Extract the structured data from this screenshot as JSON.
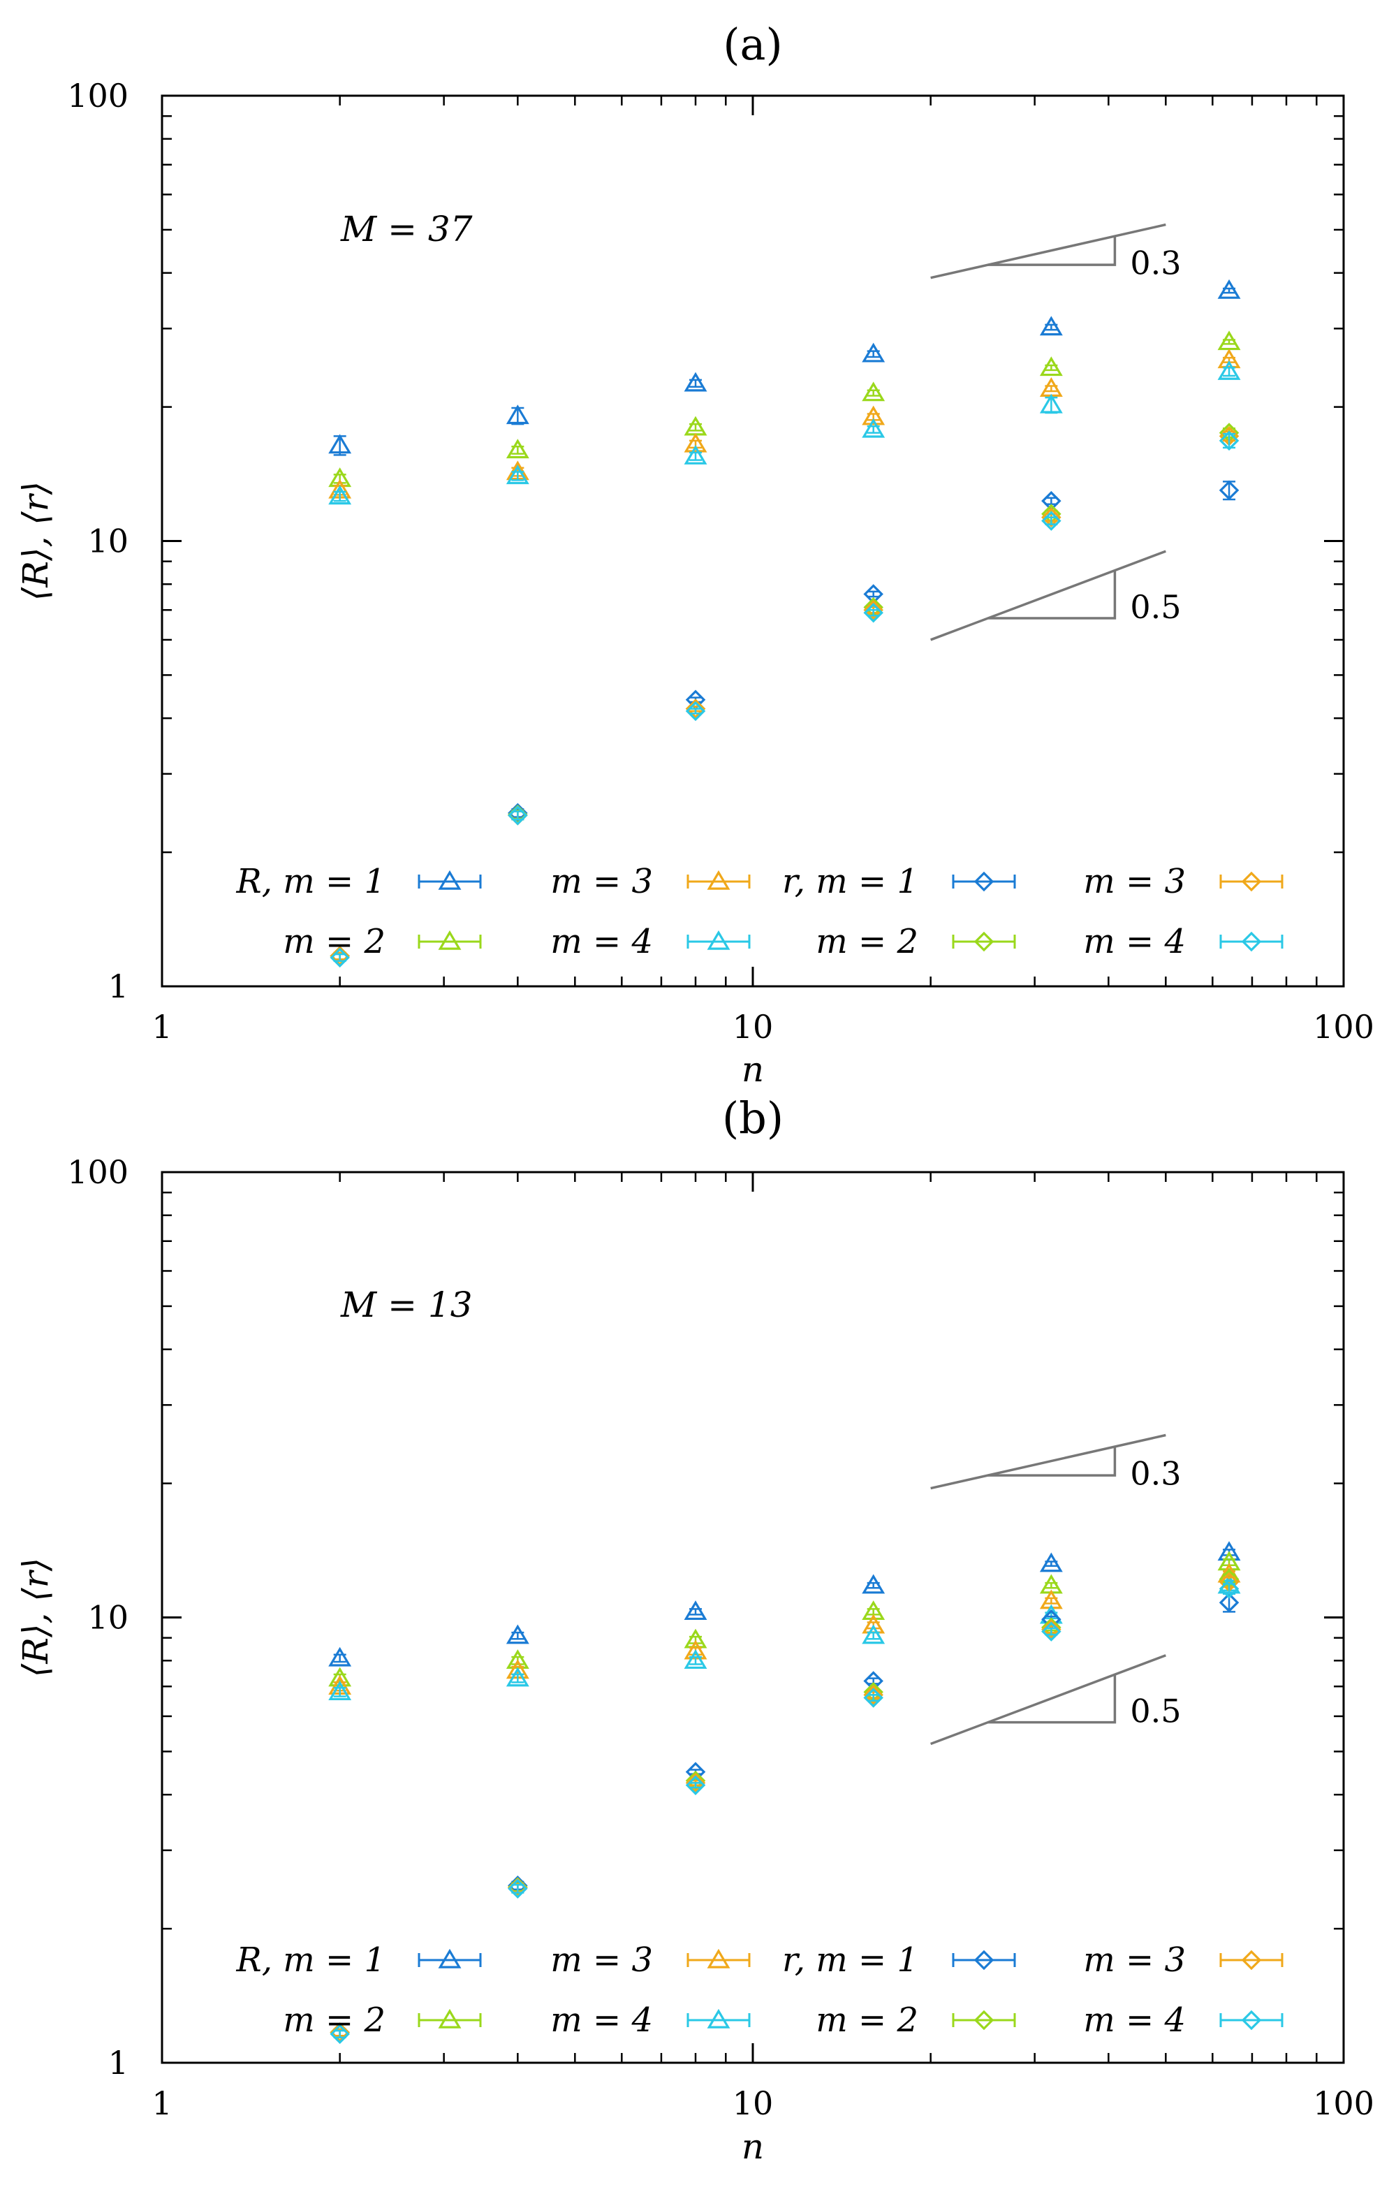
{
  "chart_data": [
    {
      "type": "scatter",
      "panel_label": "(a)",
      "title": "(a)",
      "annotation": "M = 37",
      "xlabel": "n",
      "ylabel": "⟨R⟩, ⟨r⟩",
      "xscale": "log",
      "yscale": "log",
      "xlim": [
        1,
        100
      ],
      "ylim": [
        1,
        100
      ],
      "xticks": [
        {
          "v": 1,
          "label": "1"
        },
        {
          "v": 10,
          "label": "10"
        },
        {
          "v": 100,
          "label": "100"
        }
      ],
      "yticks": [
        {
          "v": 1,
          "label": "1"
        },
        {
          "v": 10,
          "label": "10"
        },
        {
          "v": 100,
          "label": "100"
        }
      ],
      "slopes": [
        {
          "label": "0.3",
          "slope": 0.3,
          "x0": 20,
          "y0": 39,
          "x1": 50
        },
        {
          "label": "0.5",
          "slope": 0.5,
          "x0": 20,
          "y0": 6,
          "x1": 50
        }
      ],
      "x": [
        2,
        4,
        8,
        16,
        32,
        64
      ],
      "series": [
        {
          "name": "R, m = 1",
          "legend": "R, m = 1",
          "marker": "triangle",
          "color": "#1a7bd4",
          "values": [
            16.4,
            19.1,
            22.6,
            26.3,
            30.2,
            36.5
          ],
          "err": [
            0.8,
            0.8,
            0.4,
            0.4,
            0.4,
            0.4
          ]
        },
        {
          "name": "R, m = 2",
          "legend": "m = 2",
          "marker": "triangle",
          "color": "#9ad81b",
          "values": [
            13.8,
            16.0,
            18.0,
            21.5,
            24.5,
            28.0
          ],
          "err": [
            0.3,
            0.3,
            0.3,
            0.3,
            0.3,
            0.3
          ]
        },
        {
          "name": "R, m = 3",
          "legend": "m = 3",
          "marker": "triangle",
          "color": "#f0a81a",
          "values": [
            13.0,
            14.3,
            16.5,
            19.0,
            22.0,
            25.5
          ],
          "err": [
            0.3,
            0.3,
            0.3,
            0.3,
            0.3,
            0.3
          ]
        },
        {
          "name": "R, m = 4",
          "legend": "m = 4",
          "marker": "triangle",
          "color": "#2ac8e6",
          "values": [
            12.6,
            14.0,
            15.5,
            17.8,
            20.2,
            24.0
          ],
          "err": [
            0.3,
            0.3,
            0.3,
            0.3,
            0.8,
            0.5
          ]
        },
        {
          "name": "r, m = 1",
          "legend": "r, m = 1",
          "marker": "diamond",
          "color": "#1a7bd4",
          "values": [
            1.17,
            2.45,
            4.4,
            7.6,
            12.3,
            13.0
          ],
          "err": [
            0.02,
            0.05,
            0.05,
            0.1,
            0.2,
            0.6
          ]
        },
        {
          "name": "r, m = 2",
          "legend": "m = 2",
          "marker": "diamond",
          "color": "#9ad81b",
          "values": [
            1.17,
            2.43,
            4.2,
            7.1,
            11.5,
            17.5
          ],
          "err": [
            0.02,
            0.05,
            0.05,
            0.1,
            0.2,
            0.4
          ]
        },
        {
          "name": "r, m = 3",
          "legend": "m = 3",
          "marker": "diamond",
          "color": "#f0a81a",
          "values": [
            1.17,
            2.42,
            4.2,
            7.0,
            11.3,
            17.2
          ],
          "err": [
            0.02,
            0.05,
            0.05,
            0.1,
            0.2,
            0.4
          ]
        },
        {
          "name": "r, m = 4",
          "legend": "m = 4",
          "marker": "diamond",
          "color": "#2ac8e6",
          "values": [
            1.16,
            2.42,
            4.15,
            6.9,
            11.1,
            16.8
          ],
          "err": [
            0.02,
            0.05,
            0.05,
            0.1,
            0.2,
            0.6
          ]
        }
      ]
    },
    {
      "type": "scatter",
      "panel_label": "(b)",
      "title": "(b)",
      "annotation": "M = 13",
      "xlabel": "n",
      "ylabel": "⟨R⟩, ⟨r⟩",
      "xscale": "log",
      "yscale": "log",
      "xlim": [
        1,
        100
      ],
      "ylim": [
        1,
        100
      ],
      "xticks": [
        {
          "v": 1,
          "label": "1"
        },
        {
          "v": 10,
          "label": "10"
        },
        {
          "v": 100,
          "label": "100"
        }
      ],
      "yticks": [
        {
          "v": 1,
          "label": "1"
        },
        {
          "v": 10,
          "label": "10"
        },
        {
          "v": 100,
          "label": "100"
        }
      ],
      "slopes": [
        {
          "label": "0.3",
          "slope": 0.3,
          "x0": 20,
          "y0": 19.5,
          "x1": 50
        },
        {
          "label": "0.5",
          "slope": 0.5,
          "x0": 20,
          "y0": 5.2,
          "x1": 50
        }
      ],
      "x": [
        2,
        4,
        8,
        16,
        32,
        64
      ],
      "series": [
        {
          "name": "R, m = 1",
          "legend": "R, m = 1",
          "marker": "triangle",
          "color": "#1a7bd4",
          "values": [
            8.1,
            9.1,
            10.3,
            11.8,
            13.2,
            14.0
          ],
          "err": [
            0.15,
            0.15,
            0.15,
            0.15,
            0.15,
            0.2
          ]
        },
        {
          "name": "R, m = 2",
          "legend": "m = 2",
          "marker": "triangle",
          "color": "#9ad81b",
          "values": [
            7.3,
            8.0,
            8.9,
            10.3,
            11.8,
            13.3
          ],
          "err": [
            0.15,
            0.15,
            0.15,
            0.15,
            0.15,
            0.2
          ]
        },
        {
          "name": "R, m = 3",
          "legend": "m = 3",
          "marker": "triangle",
          "color": "#f0a81a",
          "values": [
            7.0,
            7.6,
            8.4,
            9.6,
            10.9,
            12.5
          ],
          "err": [
            0.15,
            0.15,
            0.15,
            0.15,
            0.15,
            0.2
          ]
        },
        {
          "name": "R, m = 4",
          "legend": "m = 4",
          "marker": "triangle",
          "color": "#2ac8e6",
          "values": [
            6.8,
            7.3,
            8.0,
            9.1,
            10.1,
            11.8
          ],
          "err": [
            0.15,
            0.15,
            0.15,
            0.15,
            0.15,
            0.3
          ]
        },
        {
          "name": "r, m = 1",
          "legend": "r, m = 1",
          "marker": "diamond",
          "color": "#1a7bd4",
          "values": [
            1.17,
            2.5,
            4.5,
            7.2,
            9.9,
            10.8
          ],
          "err": [
            0.02,
            0.05,
            0.05,
            0.1,
            0.15,
            0.5
          ]
        },
        {
          "name": "r, m = 2",
          "legend": "m = 2",
          "marker": "diamond",
          "color": "#9ad81b",
          "values": [
            1.17,
            2.48,
            4.3,
            6.8,
            9.5,
            12.2
          ],
          "err": [
            0.02,
            0.05,
            0.05,
            0.1,
            0.15,
            0.3
          ]
        },
        {
          "name": "r, m = 3",
          "legend": "m = 3",
          "marker": "diamond",
          "color": "#f0a81a",
          "values": [
            1.17,
            2.47,
            4.25,
            6.7,
            9.4,
            12.0
          ],
          "err": [
            0.02,
            0.05,
            0.05,
            0.1,
            0.15,
            0.3
          ]
        },
        {
          "name": "r, m = 4",
          "legend": "m = 4",
          "marker": "diamond",
          "color": "#2ac8e6",
          "values": [
            1.16,
            2.46,
            4.2,
            6.6,
            9.3,
            11.6
          ],
          "err": [
            0.02,
            0.05,
            0.05,
            0.1,
            0.15,
            0.3
          ]
        }
      ]
    }
  ]
}
